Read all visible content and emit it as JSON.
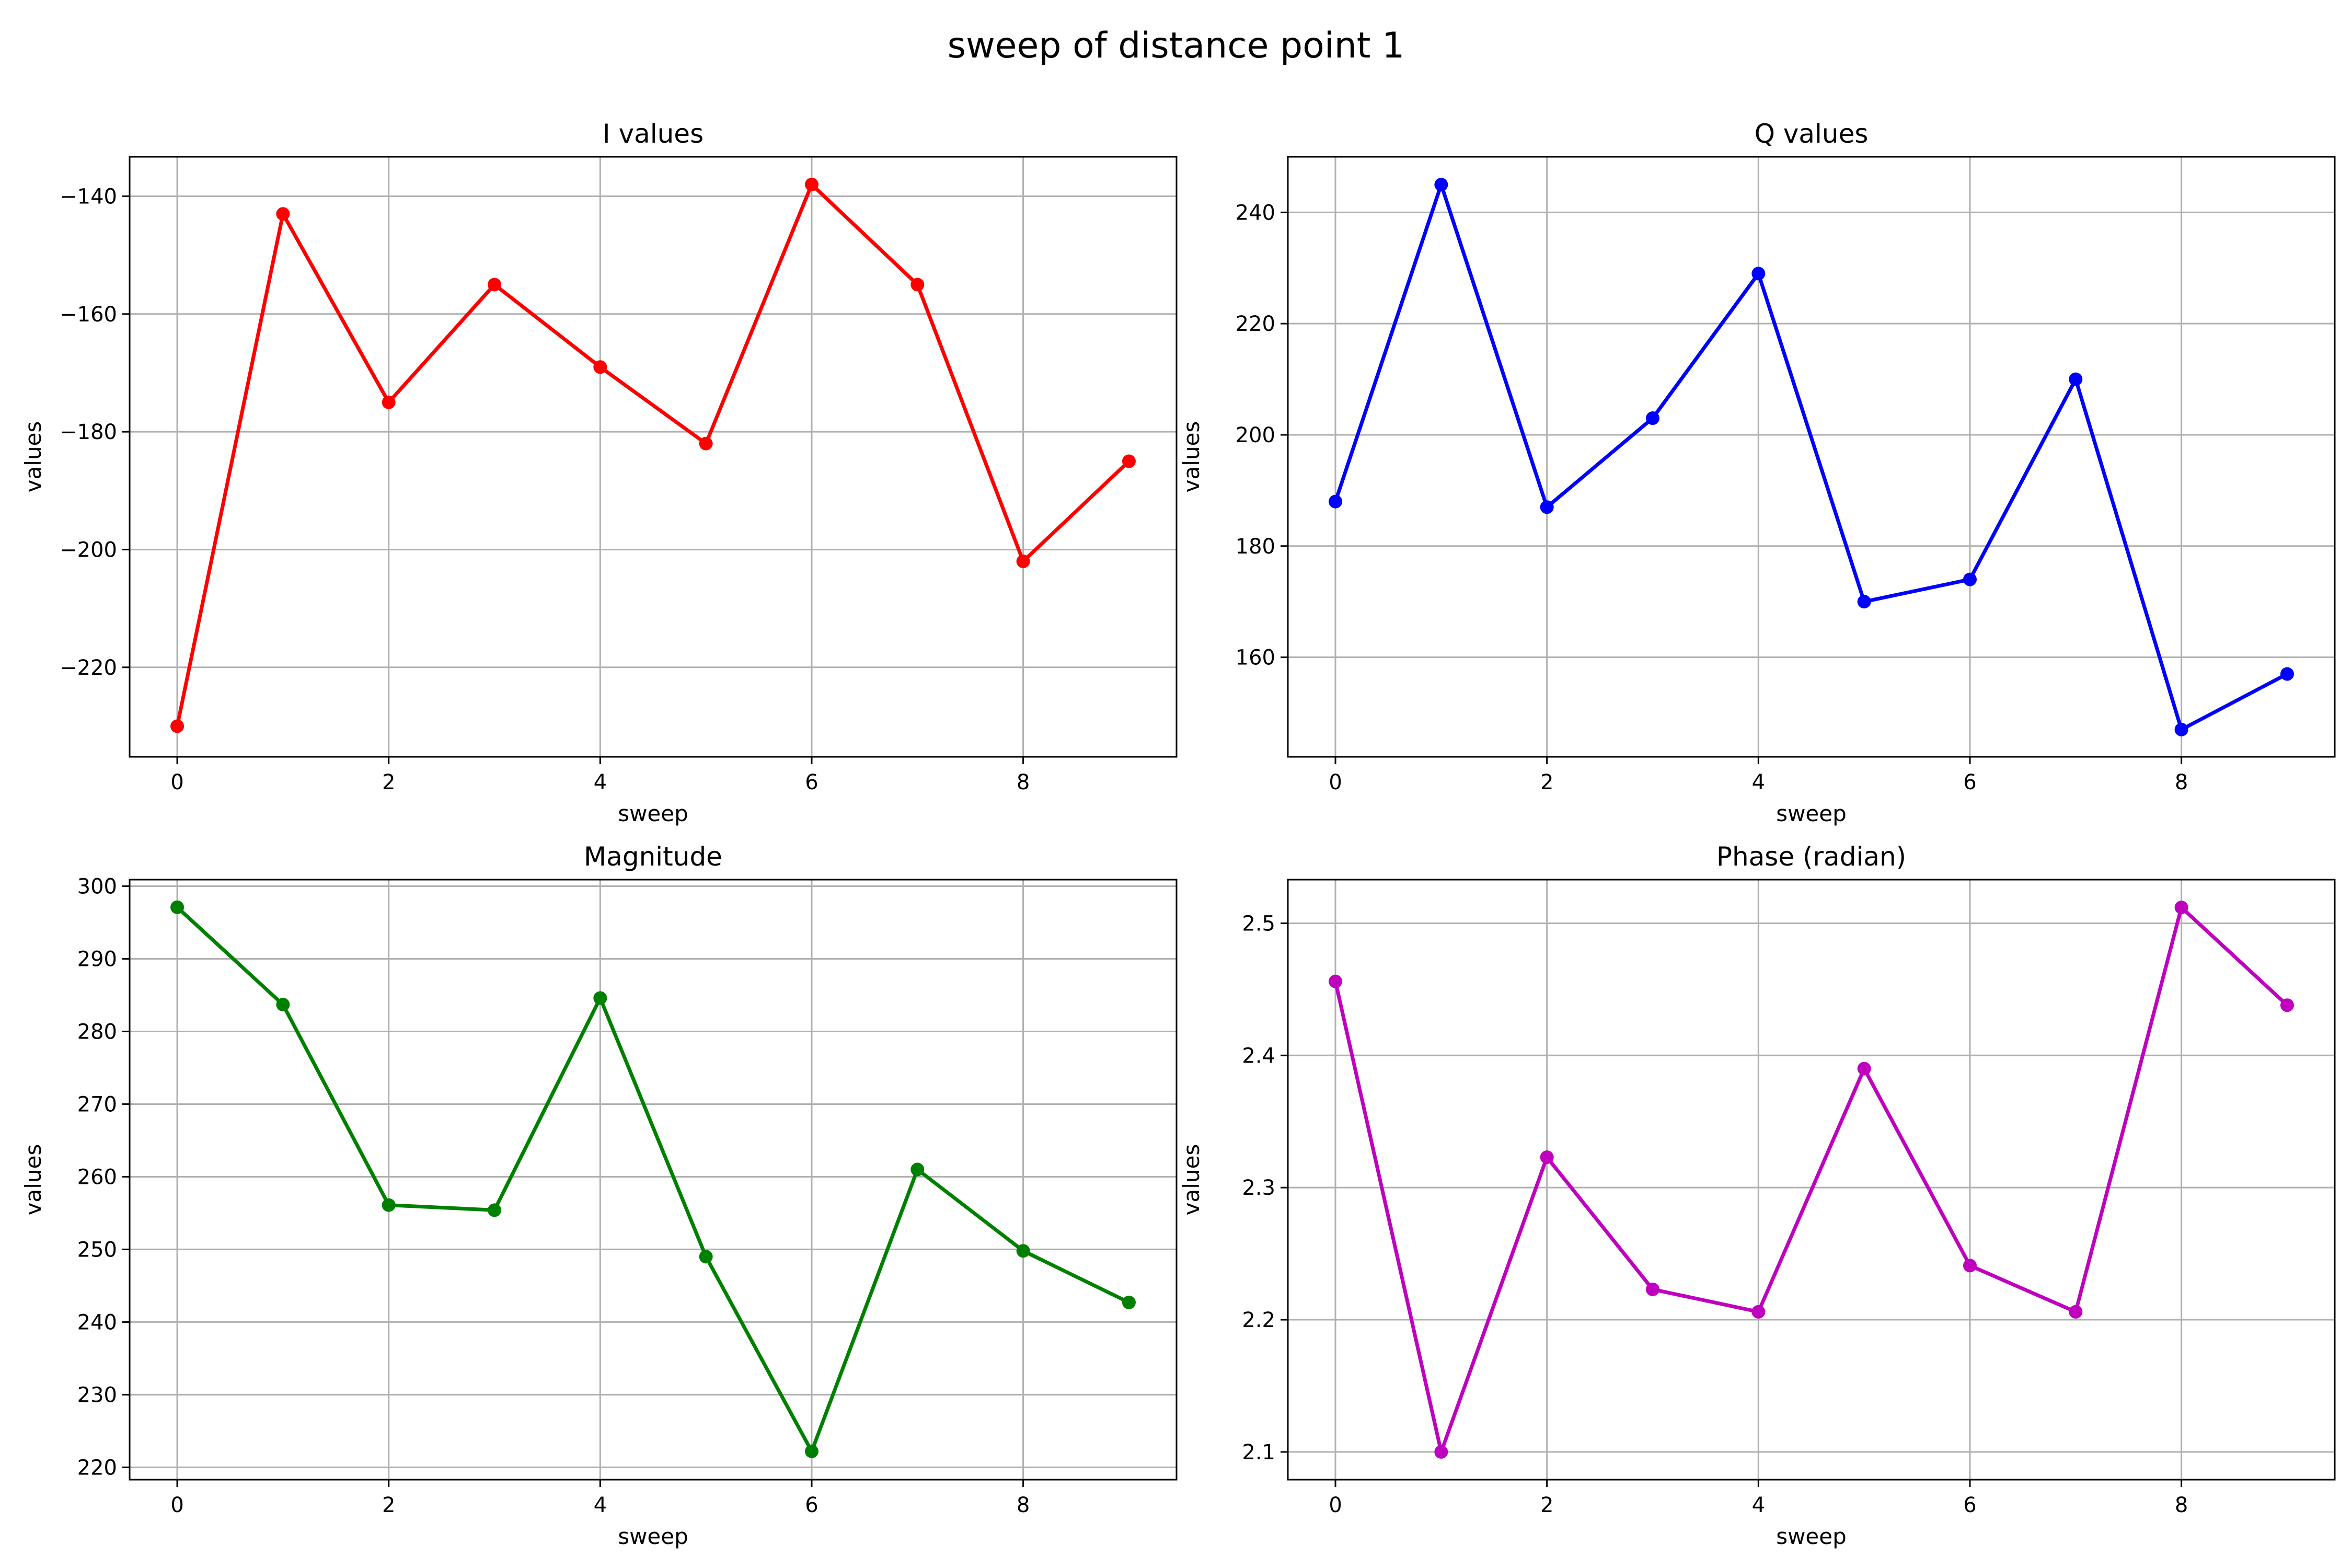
{
  "figure": {
    "suptitle": "sweep of distance point  1"
  },
  "chart_data": [
    {
      "type": "line",
      "title": "I values",
      "xlabel": "sweep",
      "ylabel": "values",
      "color": "#ff0000",
      "marker": "circle",
      "grid": true,
      "xlim": [
        -0.45,
        9.45
      ],
      "ylim": [
        -235.2,
        -133.3
      ],
      "xticks": [
        0,
        2,
        4,
        6,
        8
      ],
      "yticks": [
        -220,
        -200,
        -180,
        -160,
        -140
      ],
      "xtick_labels": [
        "0",
        "2",
        "4",
        "6",
        "8"
      ],
      "ytick_labels": [
        "−220",
        "−200",
        "−180",
        "−160",
        "−140"
      ],
      "x": [
        0,
        1,
        2,
        3,
        4,
        5,
        6,
        7,
        8,
        9
      ],
      "y": [
        -230,
        -143,
        -175,
        -155,
        -169,
        -182,
        -138,
        -155,
        -202,
        -185
      ]
    },
    {
      "type": "line",
      "title": "Q values",
      "xlabel": "sweep",
      "ylabel": "values",
      "color": "#0000ff",
      "marker": "circle",
      "grid": true,
      "xlim": [
        -0.45,
        9.45
      ],
      "ylim": [
        142.1,
        250.0
      ],
      "xticks": [
        0,
        2,
        4,
        6,
        8
      ],
      "yticks": [
        160,
        180,
        200,
        220,
        240
      ],
      "xtick_labels": [
        "0",
        "2",
        "4",
        "6",
        "8"
      ],
      "ytick_labels": [
        "160",
        "180",
        "200",
        "220",
        "240"
      ],
      "x": [
        0,
        1,
        2,
        3,
        4,
        5,
        6,
        7,
        8,
        9
      ],
      "y": [
        188,
        245,
        187,
        203,
        229,
        170,
        174,
        210,
        147,
        157
      ]
    },
    {
      "type": "line",
      "title": "Magnitude",
      "xlabel": "sweep",
      "ylabel": "values",
      "color": "#008000",
      "marker": "circle",
      "grid": true,
      "xlim": [
        -0.45,
        9.45
      ],
      "ylim": [
        218.3,
        300.9
      ],
      "xticks": [
        0,
        2,
        4,
        6,
        8
      ],
      "yticks": [
        220,
        230,
        240,
        250,
        260,
        270,
        280,
        290,
        300
      ],
      "xtick_labels": [
        "0",
        "2",
        "4",
        "6",
        "8"
      ],
      "ytick_labels": [
        "220",
        "230",
        "240",
        "250",
        "260",
        "270",
        "280",
        "290",
        "300"
      ],
      "x": [
        0,
        1,
        2,
        3,
        4,
        5,
        6,
        7,
        8,
        9
      ],
      "y": [
        297.1,
        283.7,
        256.1,
        255.4,
        284.6,
        249.0,
        222.2,
        261.0,
        249.8,
        242.7
      ]
    },
    {
      "type": "line",
      "title": "Phase (radian)",
      "xlabel": "sweep",
      "ylabel": "values",
      "color": "#bf00bf",
      "marker": "circle",
      "grid": true,
      "xlim": [
        -0.45,
        9.45
      ],
      "ylim": [
        2.079,
        2.533
      ],
      "xticks": [
        0,
        2,
        4,
        6,
        8
      ],
      "yticks": [
        2.1,
        2.2,
        2.3,
        2.4,
        2.5
      ],
      "xtick_labels": [
        "0",
        "2",
        "4",
        "6",
        "8"
      ],
      "ytick_labels": [
        "2.1",
        "2.2",
        "2.3",
        "2.4",
        "2.5"
      ],
      "x": [
        0,
        1,
        2,
        3,
        4,
        5,
        6,
        7,
        8,
        9
      ],
      "y": [
        2.456,
        2.1,
        2.323,
        2.223,
        2.206,
        2.39,
        2.241,
        2.206,
        2.512,
        2.438
      ]
    }
  ]
}
